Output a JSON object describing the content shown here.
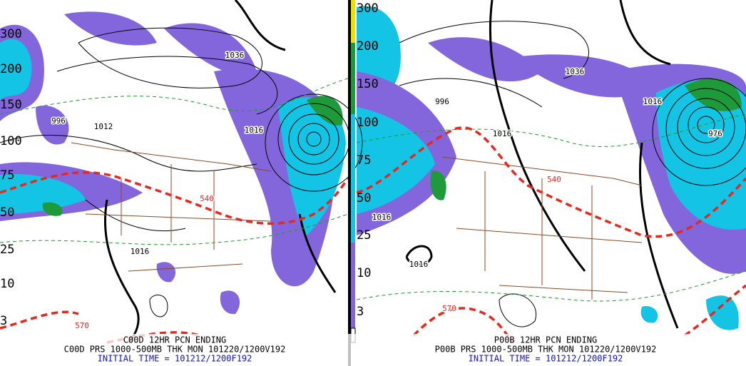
{
  "panels": [
    {
      "scale": [
        "300",
        "200",
        "150",
        "100",
        "75",
        "50",
        "25",
        "10",
        "3"
      ],
      "labels": [
        "1036",
        "996",
        "1012",
        "1016",
        "540",
        "1016",
        "570"
      ],
      "footer": [
        "C00D 12HR PCN ENDING",
        "C00D PRS 1000-500MB THK MON 101220/1200V192",
        "INITIAL TIME = 101212/1200F192"
      ]
    },
    {
      "scale": [
        "300",
        "200",
        "150",
        "100",
        "75",
        "50",
        "25",
        "10",
        "3"
      ],
      "labels": [
        "996",
        "1036",
        "1016",
        "1016",
        "540",
        "1016",
        "1016",
        "570",
        "976"
      ],
      "footer": [
        "P00B 12HR PCN ENDING",
        "P00B PRS 1000-500MB THK MON 101220/1200V192",
        "INITIAL TIME = 101212/1200F192"
      ]
    }
  ]
}
